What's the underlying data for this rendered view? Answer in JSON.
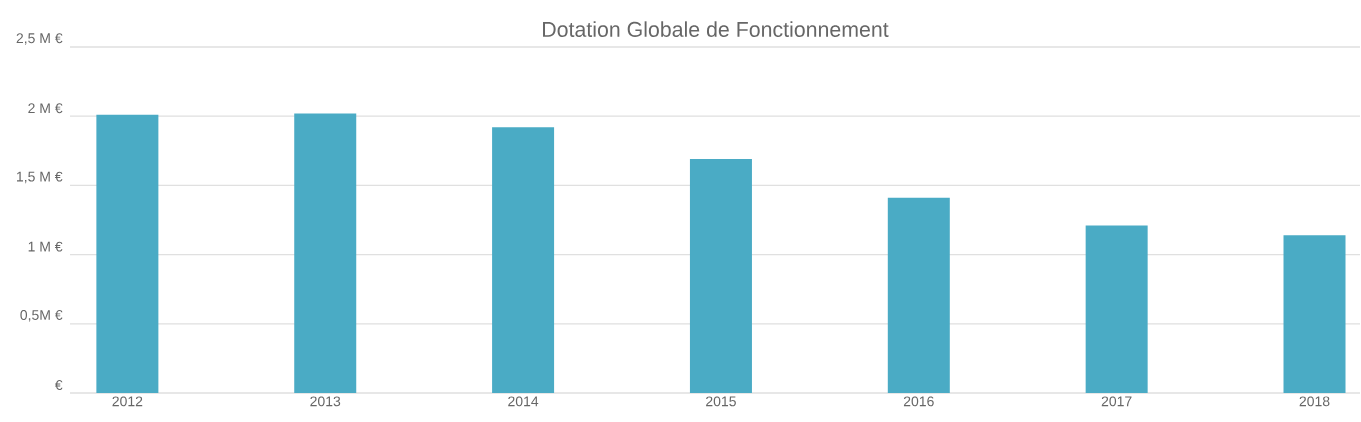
{
  "chart_data": {
    "type": "bar",
    "title": "Dotation Globale de Fonctionnement",
    "categories": [
      "2012",
      "2013",
      "2014",
      "2015",
      "2016",
      "2017",
      "2018"
    ],
    "values": [
      2.01,
      2.02,
      1.92,
      1.69,
      1.41,
      1.21,
      1.14
    ],
    "color": "#4aabc5",
    "ylim": [
      0,
      2.5
    ],
    "yticks": [
      {
        "value": 0,
        "label": "€"
      },
      {
        "value": 0.5,
        "label": "0,5M €"
      },
      {
        "value": 1,
        "label": "1 M €"
      },
      {
        "value": 1.5,
        "label": "1,5 M €"
      },
      {
        "value": 2,
        "label": "2 M €"
      },
      {
        "value": 2.5,
        "label": "2,5 M €"
      }
    ],
    "grid": "y"
  }
}
